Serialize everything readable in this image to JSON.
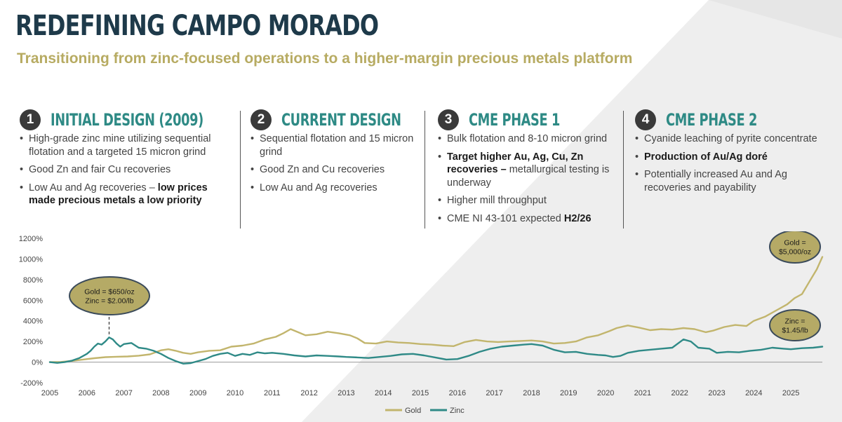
{
  "header": {
    "title": "REDEFINING CAMPO MORADO",
    "subtitle": "Transitioning from zinc-focused operations to a higher-margin precious metals platform"
  },
  "phases": [
    {
      "number": "1",
      "title": "INITIAL DESIGN (2009)",
      "bullets": [
        {
          "parts": [
            {
              "text": "High-grade zinc mine utilizing sequential flotation and a targeted 15 micron grind",
              "bold": false
            }
          ]
        },
        {
          "parts": [
            {
              "text": "Good Zn and fair Cu recoveries",
              "bold": false
            }
          ]
        },
        {
          "parts": [
            {
              "text": "Low Au and Ag recoveries – ",
              "bold": false
            },
            {
              "text": "low prices made precious metals a low priority",
              "bold": true
            }
          ]
        }
      ]
    },
    {
      "number": "2",
      "title": "CURRENT DESIGN",
      "bullets": [
        {
          "parts": [
            {
              "text": "Sequential flotation and 15 micron grind",
              "bold": false
            }
          ]
        },
        {
          "parts": [
            {
              "text": "Good Zn and Cu recoveries",
              "bold": false
            }
          ]
        },
        {
          "parts": [
            {
              "text": "Low Au and Ag recoveries",
              "bold": false
            }
          ]
        }
      ]
    },
    {
      "number": "3",
      "title": "CME PHASE 1",
      "bullets": [
        {
          "parts": [
            {
              "text": "Bulk flotation and 8-10 micron grind",
              "bold": false
            }
          ]
        },
        {
          "parts": [
            {
              "text": "Target higher Au, Ag, Cu, Zn recoveries – ",
              "bold": true
            },
            {
              "text": "metallurgical testing is underway",
              "bold": false
            }
          ]
        },
        {
          "parts": [
            {
              "text": "Higher mill throughput",
              "bold": false
            }
          ]
        },
        {
          "parts": [
            {
              "text": "CME NI 43-101 expected ",
              "bold": false
            },
            {
              "text": "H2/26",
              "bold": true
            }
          ]
        }
      ]
    },
    {
      "number": "4",
      "title": "CME PHASE 2",
      "bullets": [
        {
          "parts": [
            {
              "text": "Cyanide leaching of pyrite concentrate",
              "bold": false
            }
          ]
        },
        {
          "parts": [
            {
              "text": "Production of Au/Ag doré",
              "bold": true
            }
          ]
        },
        {
          "parts": [
            {
              "text": "Potentially increased Au and Ag recoveries and payability",
              "bold": false
            }
          ]
        }
      ]
    }
  ],
  "colors": {
    "gold": "#c2b56d",
    "zinc": "#2f8a87",
    "axis_text": "#444444",
    "callout_fill": "#b5aa66",
    "callout_stroke": "#3a4a5a"
  },
  "chart_data": {
    "type": "line",
    "x_range": [
      2005,
      2025.85
    ],
    "ylim": [
      -200,
      1200
    ],
    "y_ticks": [
      -200,
      0,
      200,
      400,
      600,
      800,
      1000,
      1200
    ],
    "y_tick_labels": [
      "-200%",
      "0%",
      "200%",
      "400%",
      "600%",
      "800%",
      "1000%",
      "1200%"
    ],
    "x_tick_labels": [
      "2005",
      "2006",
      "2007",
      "2008",
      "2009",
      "2010",
      "2011",
      "2012",
      "2013",
      "2014",
      "2015",
      "2016",
      "2017",
      "2018",
      "2019",
      "2020",
      "2021",
      "2022",
      "2023",
      "2024",
      "2025"
    ],
    "series": [
      {
        "name": "Gold",
        "points": [
          [
            2005.0,
            0
          ],
          [
            2005.3,
            2
          ],
          [
            2005.6,
            12
          ],
          [
            2005.9,
            25
          ],
          [
            2006.2,
            38
          ],
          [
            2006.5,
            48
          ],
          [
            2006.8,
            52
          ],
          [
            2007.1,
            55
          ],
          [
            2007.4,
            62
          ],
          [
            2007.7,
            75
          ],
          [
            2008.0,
            115
          ],
          [
            2008.2,
            125
          ],
          [
            2008.4,
            110
          ],
          [
            2008.6,
            90
          ],
          [
            2008.8,
            80
          ],
          [
            2009.0,
            95
          ],
          [
            2009.3,
            110
          ],
          [
            2009.6,
            115
          ],
          [
            2009.9,
            150
          ],
          [
            2010.2,
            160
          ],
          [
            2010.5,
            180
          ],
          [
            2010.8,
            220
          ],
          [
            2011.1,
            245
          ],
          [
            2011.3,
            280
          ],
          [
            2011.5,
            320
          ],
          [
            2011.7,
            290
          ],
          [
            2011.9,
            260
          ],
          [
            2012.2,
            270
          ],
          [
            2012.5,
            295
          ],
          [
            2012.8,
            280
          ],
          [
            2013.1,
            260
          ],
          [
            2013.3,
            230
          ],
          [
            2013.5,
            185
          ],
          [
            2013.8,
            180
          ],
          [
            2014.1,
            200
          ],
          [
            2014.4,
            190
          ],
          [
            2014.7,
            185
          ],
          [
            2015.0,
            175
          ],
          [
            2015.3,
            170
          ],
          [
            2015.6,
            160
          ],
          [
            2015.9,
            155
          ],
          [
            2016.2,
            195
          ],
          [
            2016.5,
            215
          ],
          [
            2016.8,
            200
          ],
          [
            2017.1,
            195
          ],
          [
            2017.4,
            200
          ],
          [
            2017.7,
            205
          ],
          [
            2018.0,
            210
          ],
          [
            2018.3,
            200
          ],
          [
            2018.6,
            180
          ],
          [
            2018.9,
            185
          ],
          [
            2019.2,
            200
          ],
          [
            2019.5,
            240
          ],
          [
            2019.8,
            260
          ],
          [
            2020.1,
            300
          ],
          [
            2020.3,
            330
          ],
          [
            2020.6,
            355
          ],
          [
            2020.9,
            335
          ],
          [
            2021.2,
            310
          ],
          [
            2021.5,
            320
          ],
          [
            2021.8,
            315
          ],
          [
            2022.1,
            330
          ],
          [
            2022.4,
            320
          ],
          [
            2022.7,
            290
          ],
          [
            2022.9,
            305
          ],
          [
            2023.2,
            340
          ],
          [
            2023.5,
            360
          ],
          [
            2023.8,
            350
          ],
          [
            2024.0,
            400
          ],
          [
            2024.3,
            440
          ],
          [
            2024.6,
            500
          ],
          [
            2024.9,
            560
          ],
          [
            2025.1,
            620
          ],
          [
            2025.3,
            660
          ],
          [
            2025.5,
            780
          ],
          [
            2025.7,
            900
          ],
          [
            2025.85,
            1020
          ]
        ]
      },
      {
        "name": "Zinc",
        "points": [
          [
            2005.0,
            0
          ],
          [
            2005.2,
            -8
          ],
          [
            2005.4,
            0
          ],
          [
            2005.6,
            15
          ],
          [
            2005.8,
            40
          ],
          [
            2006.0,
            80
          ],
          [
            2006.1,
            110
          ],
          [
            2006.2,
            150
          ],
          [
            2006.3,
            180
          ],
          [
            2006.4,
            170
          ],
          [
            2006.5,
            200
          ],
          [
            2006.6,
            240
          ],
          [
            2006.7,
            220
          ],
          [
            2006.8,
            180
          ],
          [
            2006.9,
            150
          ],
          [
            2007.0,
            175
          ],
          [
            2007.2,
            185
          ],
          [
            2007.4,
            140
          ],
          [
            2007.6,
            130
          ],
          [
            2007.8,
            110
          ],
          [
            2008.0,
            80
          ],
          [
            2008.2,
            40
          ],
          [
            2008.4,
            10
          ],
          [
            2008.6,
            -15
          ],
          [
            2008.8,
            -10
          ],
          [
            2009.0,
            10
          ],
          [
            2009.2,
            30
          ],
          [
            2009.4,
            60
          ],
          [
            2009.6,
            80
          ],
          [
            2009.8,
            90
          ],
          [
            2010.0,
            60
          ],
          [
            2010.2,
            80
          ],
          [
            2010.4,
            70
          ],
          [
            2010.6,
            95
          ],
          [
            2010.8,
            85
          ],
          [
            2011.0,
            90
          ],
          [
            2011.3,
            80
          ],
          [
            2011.6,
            65
          ],
          [
            2011.9,
            55
          ],
          [
            2012.2,
            65
          ],
          [
            2012.5,
            60
          ],
          [
            2012.8,
            55
          ],
          [
            2013.0,
            50
          ],
          [
            2013.3,
            45
          ],
          [
            2013.6,
            40
          ],
          [
            2013.9,
            50
          ],
          [
            2014.2,
            60
          ],
          [
            2014.5,
            75
          ],
          [
            2014.8,
            80
          ],
          [
            2015.1,
            65
          ],
          [
            2015.4,
            45
          ],
          [
            2015.7,
            25
          ],
          [
            2016.0,
            30
          ],
          [
            2016.3,
            60
          ],
          [
            2016.6,
            100
          ],
          [
            2016.9,
            130
          ],
          [
            2017.2,
            150
          ],
          [
            2017.5,
            160
          ],
          [
            2017.8,
            170
          ],
          [
            2018.0,
            175
          ],
          [
            2018.3,
            160
          ],
          [
            2018.6,
            120
          ],
          [
            2018.9,
            95
          ],
          [
            2019.2,
            100
          ],
          [
            2019.5,
            80
          ],
          [
            2019.8,
            70
          ],
          [
            2020.0,
            65
          ],
          [
            2020.2,
            50
          ],
          [
            2020.4,
            60
          ],
          [
            2020.6,
            90
          ],
          [
            2020.9,
            110
          ],
          [
            2021.2,
            120
          ],
          [
            2021.5,
            130
          ],
          [
            2021.8,
            140
          ],
          [
            2022.1,
            220
          ],
          [
            2022.3,
            200
          ],
          [
            2022.5,
            140
          ],
          [
            2022.8,
            130
          ],
          [
            2023.0,
            90
          ],
          [
            2023.3,
            100
          ],
          [
            2023.6,
            95
          ],
          [
            2023.9,
            110
          ],
          [
            2024.2,
            120
          ],
          [
            2024.5,
            140
          ],
          [
            2024.8,
            130
          ],
          [
            2025.0,
            125
          ],
          [
            2025.3,
            135
          ],
          [
            2025.6,
            140
          ],
          [
            2025.85,
            150
          ]
        ]
      }
    ],
    "annotations": [
      {
        "lines": [
          "Gold = $650/oz",
          "Zinc = $2.00/lb"
        ],
        "anchor_x": 2006.6
      },
      {
        "lines": [
          "Gold =",
          "$5,000/oz"
        ]
      },
      {
        "lines": [
          "Zinc =",
          "$1.45/lb"
        ]
      }
    ],
    "legend": {
      "position": "bottom",
      "entries": [
        "Gold",
        "Zinc"
      ]
    }
  }
}
